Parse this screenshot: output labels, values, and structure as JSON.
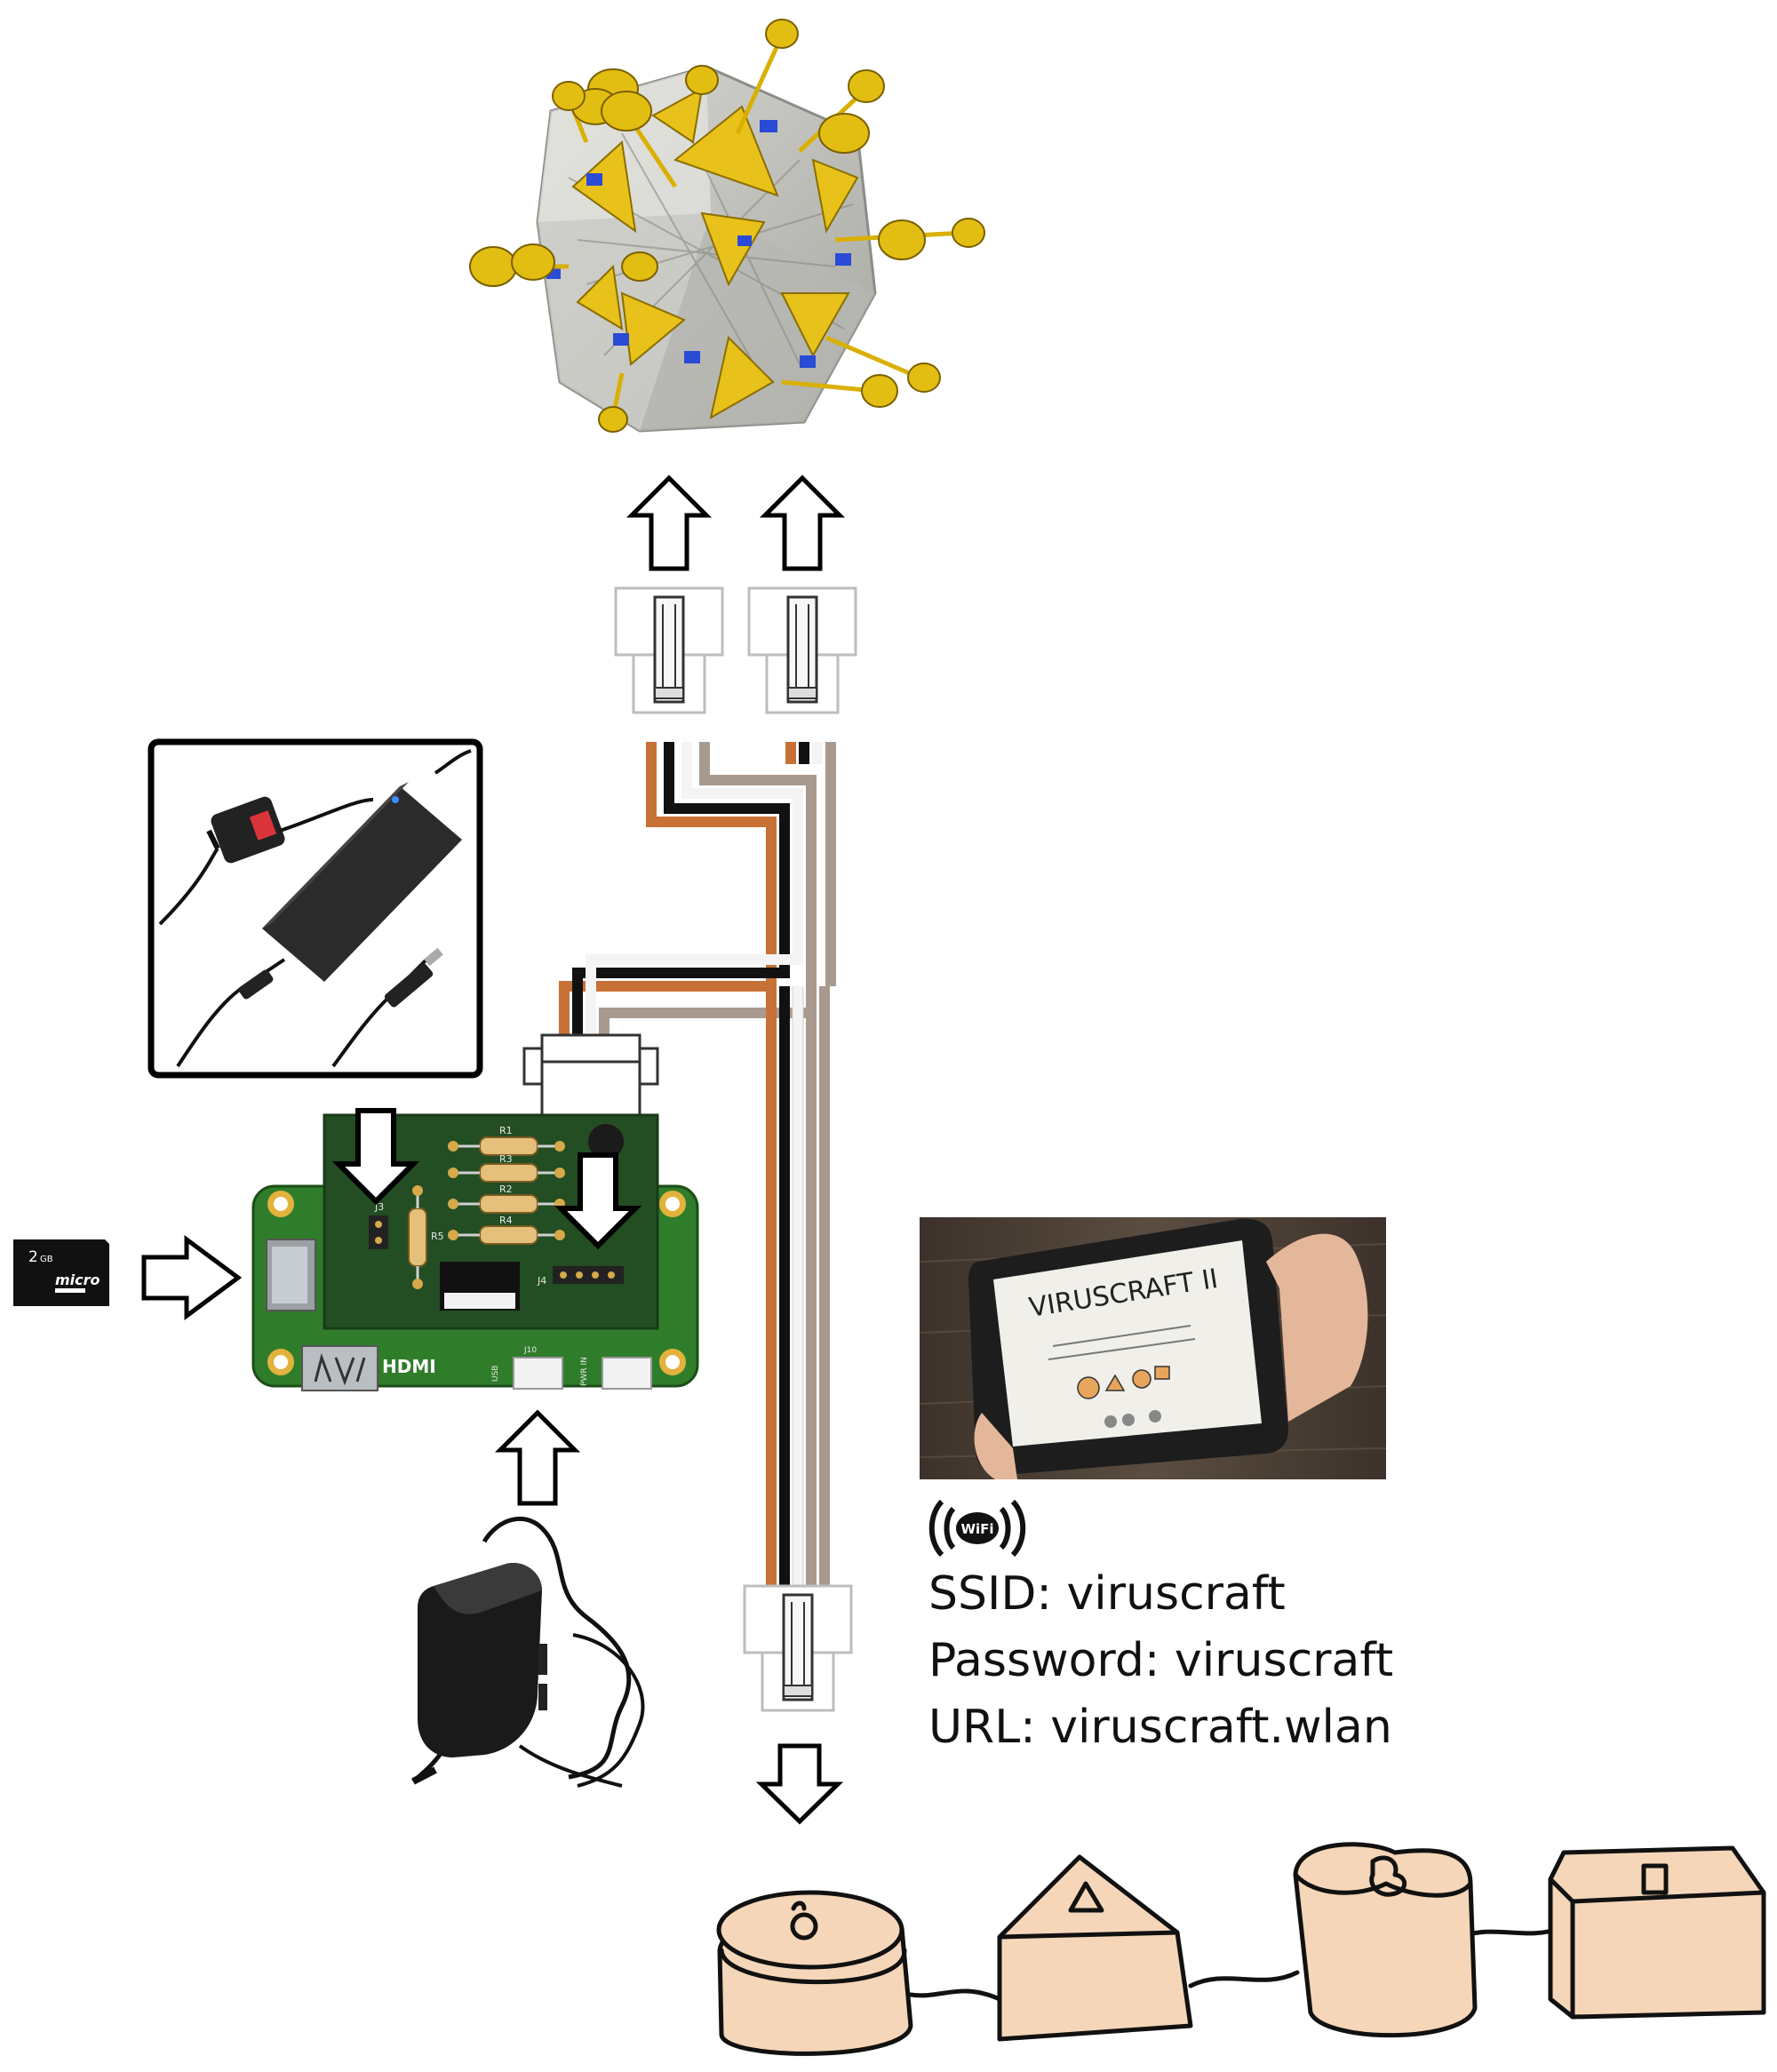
{
  "pcb": {
    "resistors": [
      "R1",
      "R3",
      "R2",
      "R4",
      "R5"
    ],
    "jumpers": [
      "J3",
      "J4"
    ],
    "hdmi_label": "HDMI",
    "port_labels": [
      "USB",
      "PWR IN",
      "J10"
    ]
  },
  "sd_card": {
    "capacity": "2",
    "unit": "GB",
    "brand": "micro"
  },
  "tablet": {
    "title": "VIRUSCRAFT II"
  },
  "wifi": {
    "badge": "WiFi",
    "ssid_line": "SSID: viruscraft",
    "password_line": "Password: viruscraft",
    "url_line": "URL: viruscraft.wlan"
  },
  "colors": {
    "cable_orange": "#c87137",
    "cable_black": "#111111",
    "cable_white": "#f4f4f4",
    "cable_grey": "#a89a8e",
    "pcb_green": "#2f7d2a",
    "pcb_dark": "#234d22",
    "virus_yellow": "#e8c21a",
    "sensor_tan": "#f5d6b8",
    "wood_floor": "#4a3f35"
  }
}
